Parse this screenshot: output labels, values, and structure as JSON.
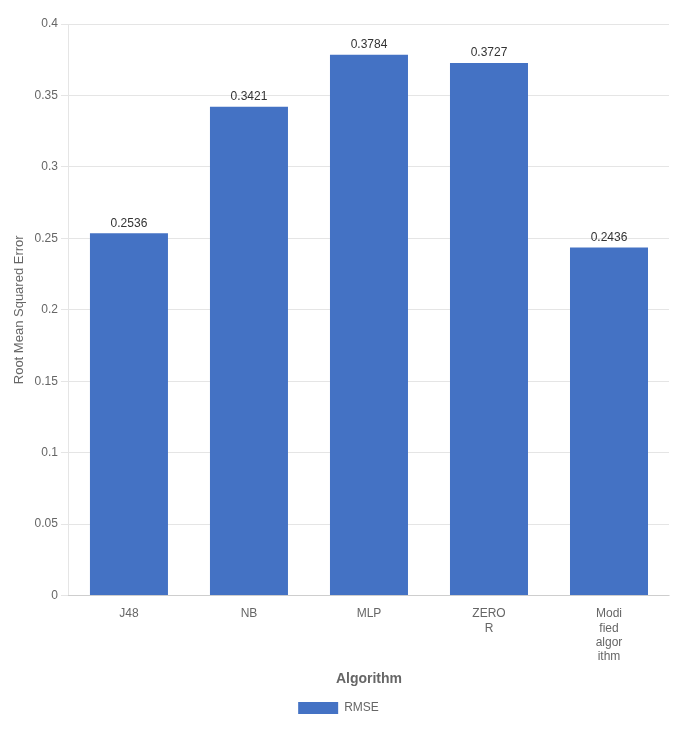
{
  "chart_data": {
    "type": "bar",
    "categories": [
      "J48",
      "NB",
      "MLP",
      "ZERO\nR",
      "Modi\nfied\nalgor\nithm"
    ],
    "series": [
      {
        "name": "RMSE",
        "color": "#4472C4",
        "values": [
          0.2536,
          0.3421,
          0.3784,
          0.3727,
          0.2436
        ]
      }
    ],
    "x_label": "Algorithm",
    "y_label": "Root Mean Squared Error",
    "ylim": [
      0,
      0.4
    ],
    "yticks": [
      0,
      0.05,
      0.1,
      0.15,
      0.2,
      0.25,
      0.3,
      0.35,
      0.4
    ],
    "grid": true,
    "legend": "bottom",
    "data_labels": true
  }
}
